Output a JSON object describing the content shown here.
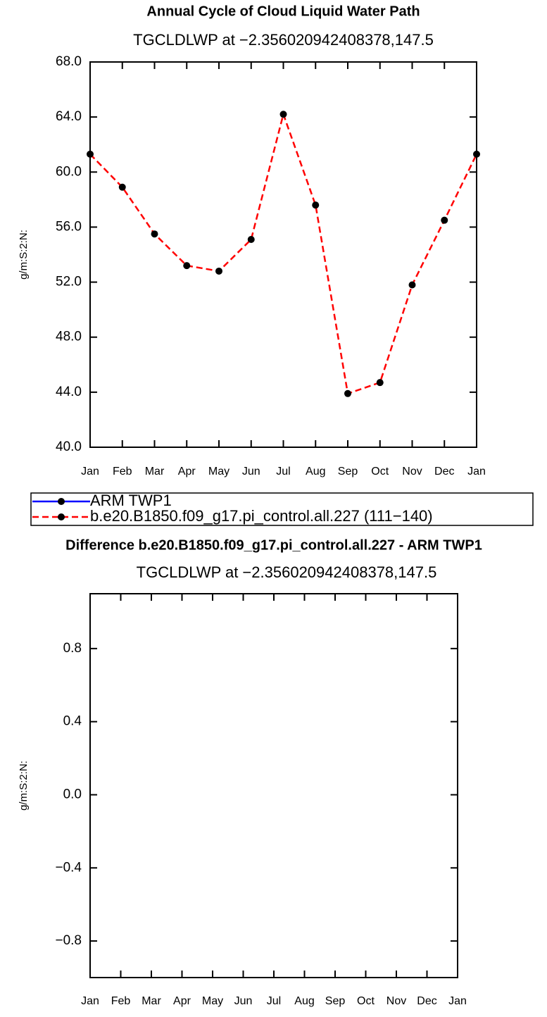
{
  "chart_data": [
    {
      "type": "line",
      "title": "Annual Cycle of Cloud Liquid Water Path",
      "subtitle": "TGCLDLWP at −2.356020942408378,147.5",
      "ylabel": "g/m:S:2:N:",
      "categories": [
        "Jan",
        "Feb",
        "Mar",
        "Apr",
        "May",
        "Jun",
        "Jul",
        "Aug",
        "Sep",
        "Oct",
        "Nov",
        "Dec",
        "Jan"
      ],
      "series": [
        {
          "name": "ARM TWP1",
          "color": "#0000ff",
          "line_style": "solid",
          "marker": "circle",
          "values": [
            null,
            null,
            null,
            null,
            null,
            null,
            null,
            null,
            null,
            null,
            null,
            null,
            null
          ]
        },
        {
          "name": "b.e20.B1850.f09_g17.pi_control.all.227 (111−140)",
          "color": "#ff0000",
          "line_style": "dashed",
          "marker": "circle",
          "values": [
            61.3,
            58.9,
            55.5,
            53.2,
            52.8,
            55.1,
            64.2,
            57.6,
            43.9,
            44.7,
            51.8,
            56.5,
            61.3
          ]
        }
      ],
      "ylim": [
        40,
        68
      ],
      "yticks": [
        {
          "value": 40,
          "label": "40.0"
        },
        {
          "value": 44,
          "label": "44.0"
        },
        {
          "value": 48,
          "label": "48.0"
        },
        {
          "value": 52,
          "label": "52.0"
        },
        {
          "value": 56,
          "label": "56.0"
        },
        {
          "value": 60,
          "label": "60.0"
        },
        {
          "value": 64,
          "label": "64.0"
        },
        {
          "value": 68,
          "label": "68.0"
        }
      ],
      "legend": "bottom"
    },
    {
      "type": "line",
      "title": "Difference b.e20.B1850.f09_g17.pi_control.all.227 - ARM TWP1",
      "subtitle": "TGCLDLWP at −2.356020942408378,147.5",
      "ylabel": "g/m:S:2:N:",
      "categories": [
        "Jan",
        "Feb",
        "Mar",
        "Apr",
        "May",
        "Jun",
        "Jul",
        "Aug",
        "Sep",
        "Oct",
        "Nov",
        "Dec",
        "Jan"
      ],
      "ylim": [
        -1,
        1.1
      ],
      "yticks": [
        {
          "value": -0.8,
          "label": "−0.8"
        },
        {
          "value": -0.4,
          "label": "−0.4"
        },
        {
          "value": 0,
          "label": "0.0"
        },
        0.4,
        0.8
      ]
    }
  ]
}
